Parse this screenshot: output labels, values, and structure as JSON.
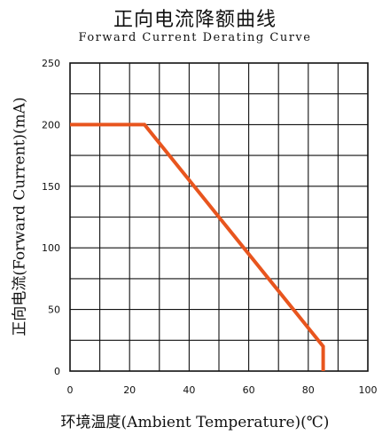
{
  "chart_data": {
    "type": "line",
    "title": "正向电流降额曲线",
    "subtitle": "Forward Current Derating Curve",
    "xlabel": "环境温度(Ambient Temperature)(℃)",
    "ylabel": "正向电流(Forward Current)(mA)",
    "xlim": [
      0,
      100
    ],
    "ylim": [
      0,
      250
    ],
    "x_ticks": [
      0,
      20,
      40,
      60,
      80,
      100
    ],
    "y_ticks": [
      0,
      50,
      100,
      150,
      200,
      250
    ],
    "x_tick_labels": [
      "0",
      "20",
      "40",
      "60",
      "80",
      "100"
    ],
    "y_tick_labels": [
      "0",
      "50",
      "100",
      "150",
      "200",
      "250"
    ],
    "x_grid_step": 10,
    "y_grid_step": 25,
    "grid": true,
    "series": [
      {
        "color": "#e8551e",
        "x": [
          0,
          25,
          85,
          85
        ],
        "y": [
          200,
          200,
          20,
          0
        ]
      }
    ]
  }
}
